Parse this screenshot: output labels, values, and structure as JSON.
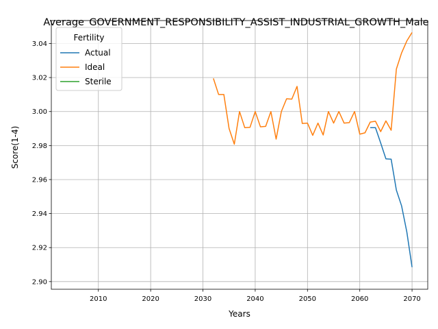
{
  "chart_data": {
    "type": "line",
    "title": "Average_GOVERNMENT_RESPONSIBILITY_ASSIST_INDUSTRIAL_GROWTH_Male",
    "xlabel": "Years",
    "ylabel": "Score(1-4)",
    "xlim": [
      2001,
      2073
    ],
    "ylim": [
      2.8955,
      3.0535
    ],
    "x_ticks": [
      2010,
      2020,
      2030,
      2040,
      2050,
      2060,
      2070
    ],
    "y_ticks": [
      2.9,
      2.92,
      2.94,
      2.96,
      2.98,
      3.0,
      3.02,
      3.04
    ],
    "x_tick_labels": [
      "2010",
      "2020",
      "2030",
      "2040",
      "2050",
      "2060",
      "2070"
    ],
    "y_tick_labels": [
      "2.90",
      "2.92",
      "2.94",
      "2.96",
      "2.98",
      "3.00",
      "3.02",
      "3.04"
    ],
    "grid": true,
    "legend": {
      "title": "Fertility",
      "placement": "top-left"
    },
    "series": [
      {
        "name": "Actual",
        "color": "#1f77b4",
        "x": [
          2062,
          2063,
          2064,
          2065,
          2066,
          2067,
          2068,
          2069,
          2070
        ],
        "y": [
          2.9905,
          2.9905,
          2.9815,
          2.9722,
          2.972,
          2.9538,
          2.9445,
          2.9292,
          2.9085
        ]
      },
      {
        "name": "Ideal",
        "color": "#ff7f0e",
        "x": [
          2032,
          2033,
          2034,
          2035,
          2036,
          2037,
          2038,
          2039,
          2040,
          2041,
          2042,
          2043,
          2044,
          2045,
          2046,
          2047,
          2048,
          2049,
          2050,
          2051,
          2052,
          2053,
          2054,
          2055,
          2056,
          2057,
          2058,
          2059,
          2060,
          2061,
          2062,
          2063,
          2064,
          2065,
          2066,
          2067,
          2068,
          2069,
          2070
        ],
        "y": [
          3.0195,
          3.01,
          3.01,
          2.99,
          2.9808,
          3.0,
          2.9905,
          2.9907,
          3.0,
          2.991,
          2.9913,
          3.0,
          2.9838,
          3.0,
          3.0075,
          3.0073,
          3.0148,
          2.993,
          2.9932,
          2.986,
          2.9932,
          2.9862,
          3.0,
          2.9932,
          3.0,
          2.9932,
          2.9935,
          3.0,
          2.9867,
          2.9875,
          2.9938,
          2.9943,
          2.9882,
          2.9945,
          2.989,
          3.025,
          3.0345,
          3.0415,
          3.0465
        ]
      },
      {
        "name": "Sterile",
        "color": "#2ca02c",
        "x": [],
        "y": []
      }
    ]
  }
}
